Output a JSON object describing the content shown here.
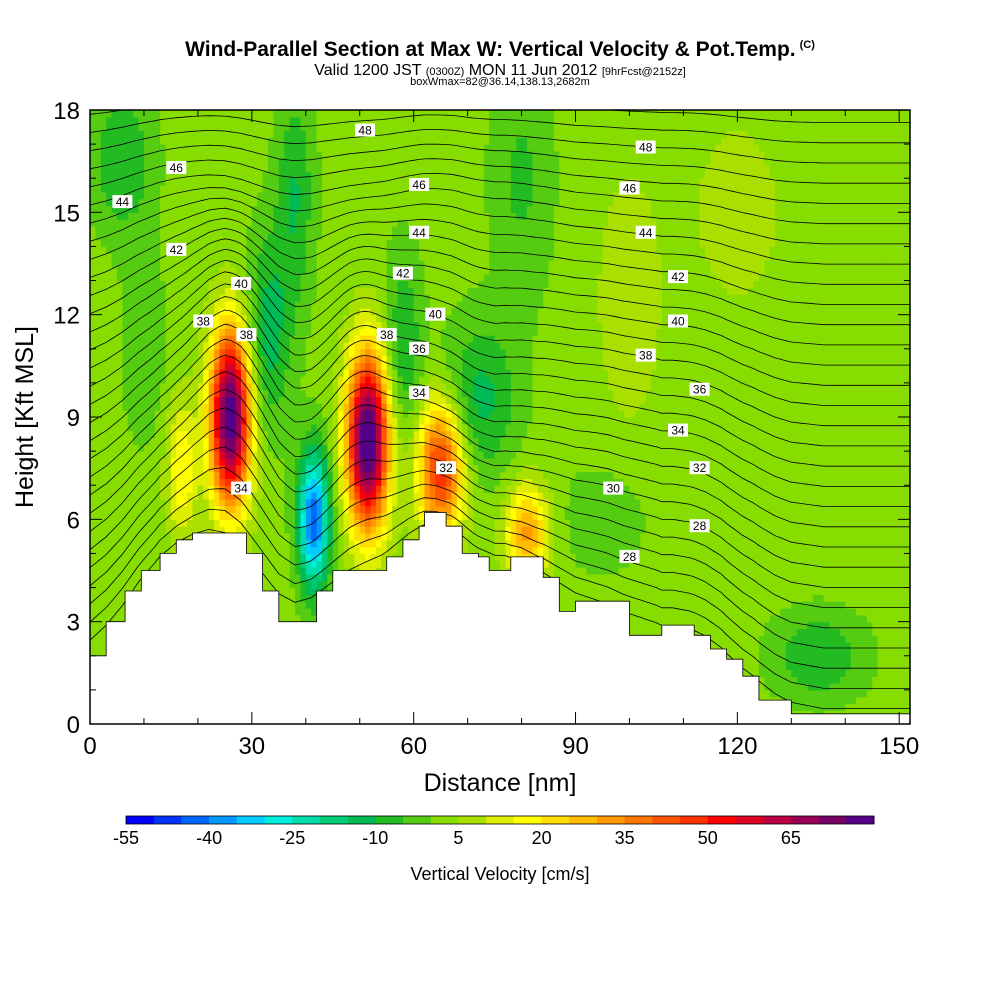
{
  "header": {
    "title": "Wind-Parallel Section at Max W: Vertical Velocity & Pot.Temp.",
    "title_mark": "(C)",
    "subtitle_a": "Valid 1200 JST",
    "subtitle_b": "(0300Z)",
    "subtitle_c": "MON 11 Jun 2012",
    "subtitle_d": "[9hrFcst@2152z]",
    "subsubtitle": "boxWmax=82@36.14,138.13,2682m"
  },
  "chart_data": {
    "type": "heatmap",
    "xlabel": "Distance [nm]",
    "ylabel": "Height [Kft MSL]",
    "xlim": [
      0,
      152
    ],
    "ylim": [
      0,
      18
    ],
    "xticks": [
      0,
      30,
      60,
      90,
      120,
      150
    ],
    "yticks": [
      0,
      3,
      6,
      9,
      12,
      15,
      18
    ],
    "grid": false,
    "background_value": 2,
    "colorbar": {
      "label": "Vertical Velocity [cm/s]",
      "tick_labels": [
        -55,
        -40,
        -25,
        -10,
        5,
        20,
        35,
        50,
        65
      ],
      "levels": [
        -55,
        -50,
        -45,
        -40,
        -35,
        -30,
        -25,
        -20,
        -15,
        -10,
        -5,
        0,
        5,
        10,
        15,
        20,
        25,
        30,
        35,
        40,
        45,
        50,
        55,
        60,
        65,
        70,
        75
      ],
      "colors": [
        "#0000ff",
        "#0033ff",
        "#0066ff",
        "#0099ff",
        "#00ccff",
        "#00eedd",
        "#00ddaa",
        "#00cc77",
        "#00bb55",
        "#22bb22",
        "#55cc11",
        "#88dd00",
        "#aae000",
        "#ddee00",
        "#ffff00",
        "#ffdd00",
        "#ffbb00",
        "#ff9900",
        "#ff7700",
        "#ff5500",
        "#ff3300",
        "#ff0000",
        "#dd0022",
        "#bb0044",
        "#990055",
        "#770066",
        "#550088"
      ]
    },
    "terrain": [
      [
        0,
        2.0
      ],
      [
        3,
        2.0
      ],
      [
        3,
        3.0
      ],
      [
        6.5,
        3.0
      ],
      [
        6.5,
        3.9
      ],
      [
        9.5,
        3.9
      ],
      [
        9.5,
        4.5
      ],
      [
        13,
        4.5
      ],
      [
        13,
        5.0
      ],
      [
        16,
        5.0
      ],
      [
        16,
        5.4
      ],
      [
        19,
        5.4
      ],
      [
        19,
        5.6
      ],
      [
        29,
        5.6
      ],
      [
        29,
        5.0
      ],
      [
        32,
        5.0
      ],
      [
        32,
        3.9
      ],
      [
        35,
        3.9
      ],
      [
        35,
        3.0
      ],
      [
        42,
        3.0
      ],
      [
        42,
        3.9
      ],
      [
        45,
        3.9
      ],
      [
        45,
        4.5
      ],
      [
        55,
        4.5
      ],
      [
        55,
        4.9
      ],
      [
        58,
        4.9
      ],
      [
        58,
        5.4
      ],
      [
        61,
        5.4
      ],
      [
        61,
        5.8
      ],
      [
        62,
        5.8
      ],
      [
        62,
        6.2
      ],
      [
        66,
        6.2
      ],
      [
        66,
        5.8
      ],
      [
        69,
        5.8
      ],
      [
        69,
        5.0
      ],
      [
        72,
        5.0
      ],
      [
        72,
        4.9
      ],
      [
        74,
        4.9
      ],
      [
        74,
        4.5
      ],
      [
        78,
        4.5
      ],
      [
        78,
        4.9
      ],
      [
        84,
        4.9
      ],
      [
        84,
        4.3
      ],
      [
        87,
        4.3
      ],
      [
        87,
        3.3
      ],
      [
        90,
        3.3
      ],
      [
        90,
        3.6
      ],
      [
        100,
        3.6
      ],
      [
        100,
        2.6
      ],
      [
        106,
        2.6
      ],
      [
        106,
        2.9
      ],
      [
        112,
        2.9
      ],
      [
        112,
        2.6
      ],
      [
        115,
        2.6
      ],
      [
        115,
        2.2
      ],
      [
        118,
        2.2
      ],
      [
        118,
        1.9
      ],
      [
        121,
        1.9
      ],
      [
        121,
        1.4
      ],
      [
        124,
        1.4
      ],
      [
        124,
        0.7
      ],
      [
        130,
        0.7
      ],
      [
        130,
        0.3
      ],
      [
        152,
        0.3
      ]
    ],
    "velocity_features": [
      {
        "x": 26,
        "y": 9.0,
        "sx": 2.6,
        "sy": 1.8,
        "w": 80
      },
      {
        "x": 51.5,
        "y": 8.3,
        "sx": 2.7,
        "sy": 1.8,
        "w": 82
      },
      {
        "x": 65,
        "y": 7.5,
        "sx": 3.0,
        "sy": 1.4,
        "w": 48
      },
      {
        "x": 81,
        "y": 5.6,
        "sx": 2.8,
        "sy": 1.0,
        "w": 30
      },
      {
        "x": 17,
        "y": 7.5,
        "sx": 2.0,
        "sy": 1.4,
        "w": 18
      },
      {
        "x": 41.5,
        "y": 6.0,
        "sx": 2.0,
        "sy": 1.4,
        "w": -45
      },
      {
        "x": 33,
        "y": 11.5,
        "sx": 3.0,
        "sy": 2.0,
        "w": -15
      },
      {
        "x": 58,
        "y": 11.0,
        "sx": 2.5,
        "sy": 2.0,
        "w": -12
      },
      {
        "x": 72,
        "y": 9.5,
        "sx": 5.0,
        "sy": 1.6,
        "w": -14
      },
      {
        "x": 6,
        "y": 16.5,
        "sx": 4.0,
        "sy": 1.5,
        "w": -12
      },
      {
        "x": 38,
        "y": 15.5,
        "sx": 2.5,
        "sy": 2.2,
        "w": -12
      },
      {
        "x": 80,
        "y": 16.0,
        "sx": 4.0,
        "sy": 2.5,
        "w": -8
      },
      {
        "x": 135,
        "y": 2.0,
        "sx": 6.0,
        "sy": 0.9,
        "w": -12
      },
      {
        "x": 100,
        "y": 12.5,
        "sx": 4.0,
        "sy": 2.5,
        "w": 8
      },
      {
        "x": 120,
        "y": 15.0,
        "sx": 6.0,
        "sy": 2.0,
        "w": 6
      },
      {
        "x": 95,
        "y": 6.0,
        "sx": 6.0,
        "sy": 1.2,
        "w": -5
      },
      {
        "x": 10,
        "y": 11.0,
        "sx": 3.0,
        "sy": 2.0,
        "w": -6
      }
    ],
    "theta_labels": [
      {
        "label": "48",
        "x": 51,
        "y": 17.4
      },
      {
        "label": "48",
        "x": 103,
        "y": 16.9
      },
      {
        "label": "46",
        "x": 16,
        "y": 16.3
      },
      {
        "label": "46",
        "x": 61,
        "y": 15.8
      },
      {
        "label": "46",
        "x": 100,
        "y": 15.7
      },
      {
        "label": "44",
        "x": 6,
        "y": 15.3
      },
      {
        "label": "44",
        "x": 61,
        "y": 14.4
      },
      {
        "label": "44",
        "x": 103,
        "y": 14.4
      },
      {
        "label": "42",
        "x": 16,
        "y": 13.9
      },
      {
        "label": "42",
        "x": 58,
        "y": 13.2
      },
      {
        "label": "42",
        "x": 109,
        "y": 13.1
      },
      {
        "label": "40",
        "x": 28,
        "y": 12.9
      },
      {
        "label": "40",
        "x": 64,
        "y": 12.0
      },
      {
        "label": "40",
        "x": 109,
        "y": 11.8
      },
      {
        "label": "38",
        "x": 21,
        "y": 11.8
      },
      {
        "label": "38",
        "x": 29,
        "y": 11.4
      },
      {
        "label": "38",
        "x": 55,
        "y": 11.4
      },
      {
        "label": "38",
        "x": 103,
        "y": 10.8
      },
      {
        "label": "36",
        "x": 61,
        "y": 11.0
      },
      {
        "label": "36",
        "x": 113,
        "y": 9.8
      },
      {
        "label": "34",
        "x": 61,
        "y": 9.7
      },
      {
        "label": "34",
        "x": 109,
        "y": 8.6
      },
      {
        "label": "34",
        "x": 28,
        "y": 6.9
      },
      {
        "label": "32",
        "x": 66,
        "y": 7.5
      },
      {
        "label": "32",
        "x": 113,
        "y": 7.5
      },
      {
        "label": "30",
        "x": 97,
        "y": 6.9
      },
      {
        "label": "28",
        "x": 113,
        "y": 5.8
      },
      {
        "label": "28",
        "x": 100,
        "y": 4.9
      }
    ]
  }
}
